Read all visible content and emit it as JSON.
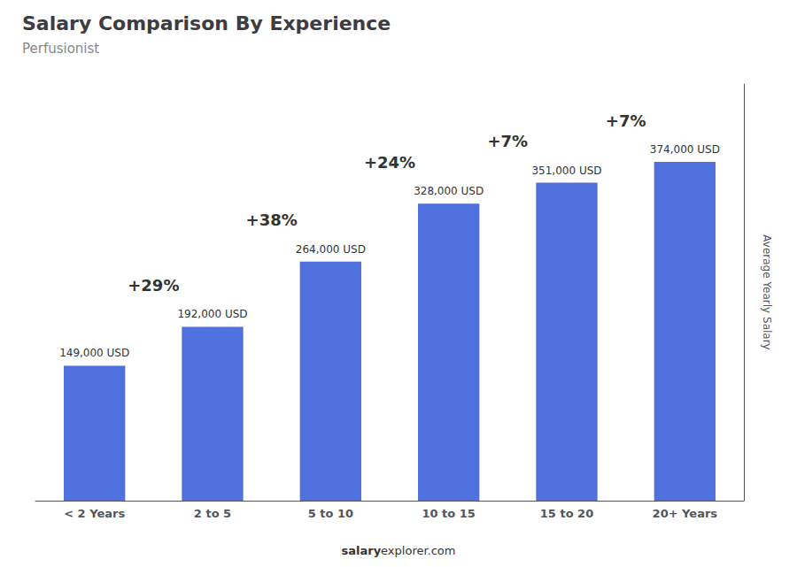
{
  "chart_data": {
    "type": "bar",
    "title": "Salary Comparison By Experience",
    "subtitle": "Perfusionist",
    "categories": [
      "< 2 Years",
      "2 to 5",
      "5 to 10",
      "10 to 15",
      "15 to 20",
      "20+ Years"
    ],
    "values": [
      149000,
      192000,
      264000,
      328000,
      351000,
      374000
    ],
    "value_labels": [
      "149,000 USD",
      "192,000 USD",
      "264,000 USD",
      "328,000 USD",
      "351,000 USD",
      "374,000 USD"
    ],
    "data_labels": true,
    "annotations": [
      "+29%",
      "+38%",
      "+24%",
      "+7%",
      "+7%"
    ],
    "ylabel": "Average Yearly Salary",
    "footer": [
      "salary",
      "explorer.com"
    ],
    "ylim": [
      0,
      460000
    ],
    "tick_labels": "x",
    "grid": false
  }
}
